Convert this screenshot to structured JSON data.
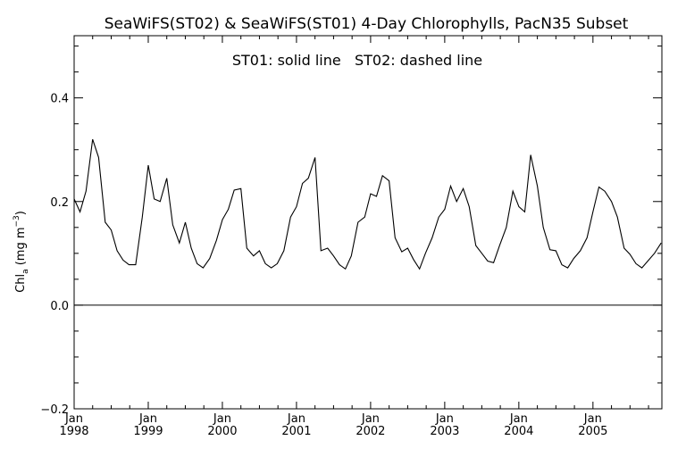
{
  "chart_data": {
    "type": "line",
    "title": "SeaWiFS(ST02) & SeaWiFS(ST01) 4-Day Chlorophylls, PacN35 Subset",
    "annotation": "ST01: solid line   ST02: dashed line",
    "ylabel_main": "Chl",
    "ylabel_sub": "a",
    "ylabel_unit": " (mg m",
    "ylabel_exp": "−3",
    "ylabel_close": ")",
    "ylim": [
      -0.2,
      0.52
    ],
    "xlim": [
      1998.0,
      2005.93
    ],
    "yticks": [
      {
        "value": -0.2,
        "label": "−0.2"
      },
      {
        "value": 0.0,
        "label": "0.0"
      },
      {
        "value": 0.2,
        "label": "0.2"
      },
      {
        "value": 0.4,
        "label": "0.4"
      }
    ],
    "xticks": [
      {
        "value": 1998,
        "month": "Jan",
        "year": "1998"
      },
      {
        "value": 1999,
        "month": "Jan",
        "year": "1999"
      },
      {
        "value": 2000,
        "month": "Jan",
        "year": "2000"
      },
      {
        "value": 2001,
        "month": "Jan",
        "year": "2001"
      },
      {
        "value": 2002,
        "month": "Jan",
        "year": "2002"
      },
      {
        "value": 2003,
        "month": "Jan",
        "year": "2003"
      },
      {
        "value": 2004,
        "month": "Jan",
        "year": "2004"
      },
      {
        "value": 2005,
        "month": "Jan",
        "year": "2005"
      }
    ],
    "zero_line": 0.0,
    "grid": false,
    "series": [
      {
        "name": "ST01",
        "style": "solid",
        "color": "#000000",
        "x": [
          1998.0,
          1998.08,
          1998.16,
          1998.25,
          1998.33,
          1998.42,
          1998.5,
          1998.58,
          1998.66,
          1998.74,
          1998.83,
          1998.92,
          1999.0,
          1999.08,
          1999.16,
          1999.25,
          1999.33,
          1999.42,
          1999.5,
          1999.58,
          1999.66,
          1999.74,
          1999.83,
          1999.92,
          2000.0,
          2000.08,
          2000.16,
          2000.25,
          2000.33,
          2000.42,
          2000.5,
          2000.58,
          2000.66,
          2000.74,
          2000.83,
          2000.92,
          2001.0,
          2001.08,
          2001.16,
          2001.25,
          2001.33,
          2001.42,
          2001.5,
          2001.58,
          2001.66,
          2001.74,
          2001.83,
          2001.92,
          2002.0,
          2002.08,
          2002.16,
          2002.25,
          2002.33,
          2002.42,
          2002.5,
          2002.58,
          2002.66,
          2002.74,
          2002.83,
          2002.92,
          2003.0,
          2003.08,
          2003.16,
          2003.25,
          2003.33,
          2003.42,
          2003.5,
          2003.58,
          2003.66,
          2003.74,
          2003.83,
          2003.92,
          2004.0,
          2004.08,
          2004.16,
          2004.25,
          2004.33,
          2004.42,
          2004.5,
          2004.58,
          2004.66,
          2004.74,
          2004.83,
          2004.92,
          2005.0,
          2005.08,
          2005.16,
          2005.25,
          2005.33,
          2005.42,
          2005.5,
          2005.58,
          2005.66,
          2005.74,
          2005.83,
          2005.92
        ],
        "y": [
          0.205,
          0.18,
          0.22,
          0.32,
          0.285,
          0.16,
          0.145,
          0.105,
          0.087,
          0.078,
          0.078,
          0.17,
          0.27,
          0.205,
          0.2,
          0.245,
          0.155,
          0.12,
          0.16,
          0.11,
          0.08,
          0.072,
          0.09,
          0.125,
          0.165,
          0.185,
          0.222,
          0.225,
          0.11,
          0.095,
          0.105,
          0.08,
          0.072,
          0.08,
          0.105,
          0.17,
          0.19,
          0.235,
          0.245,
          0.285,
          0.105,
          0.11,
          0.095,
          0.078,
          0.07,
          0.095,
          0.16,
          0.17,
          0.215,
          0.21,
          0.25,
          0.24,
          0.13,
          0.103,
          0.11,
          0.088,
          0.07,
          0.1,
          0.13,
          0.17,
          0.185,
          0.23,
          0.2,
          0.225,
          0.19,
          0.115,
          0.1,
          0.085,
          0.082,
          0.115,
          0.15,
          0.22,
          0.19,
          0.18,
          0.29,
          0.23,
          0.15,
          0.107,
          0.105,
          0.078,
          0.072,
          0.09,
          0.105,
          0.13,
          0.18,
          0.228,
          0.22,
          0.2,
          0.17,
          0.11,
          0.098,
          0.08,
          0.072,
          0.085,
          0.1,
          0.12
        ]
      }
    ]
  }
}
